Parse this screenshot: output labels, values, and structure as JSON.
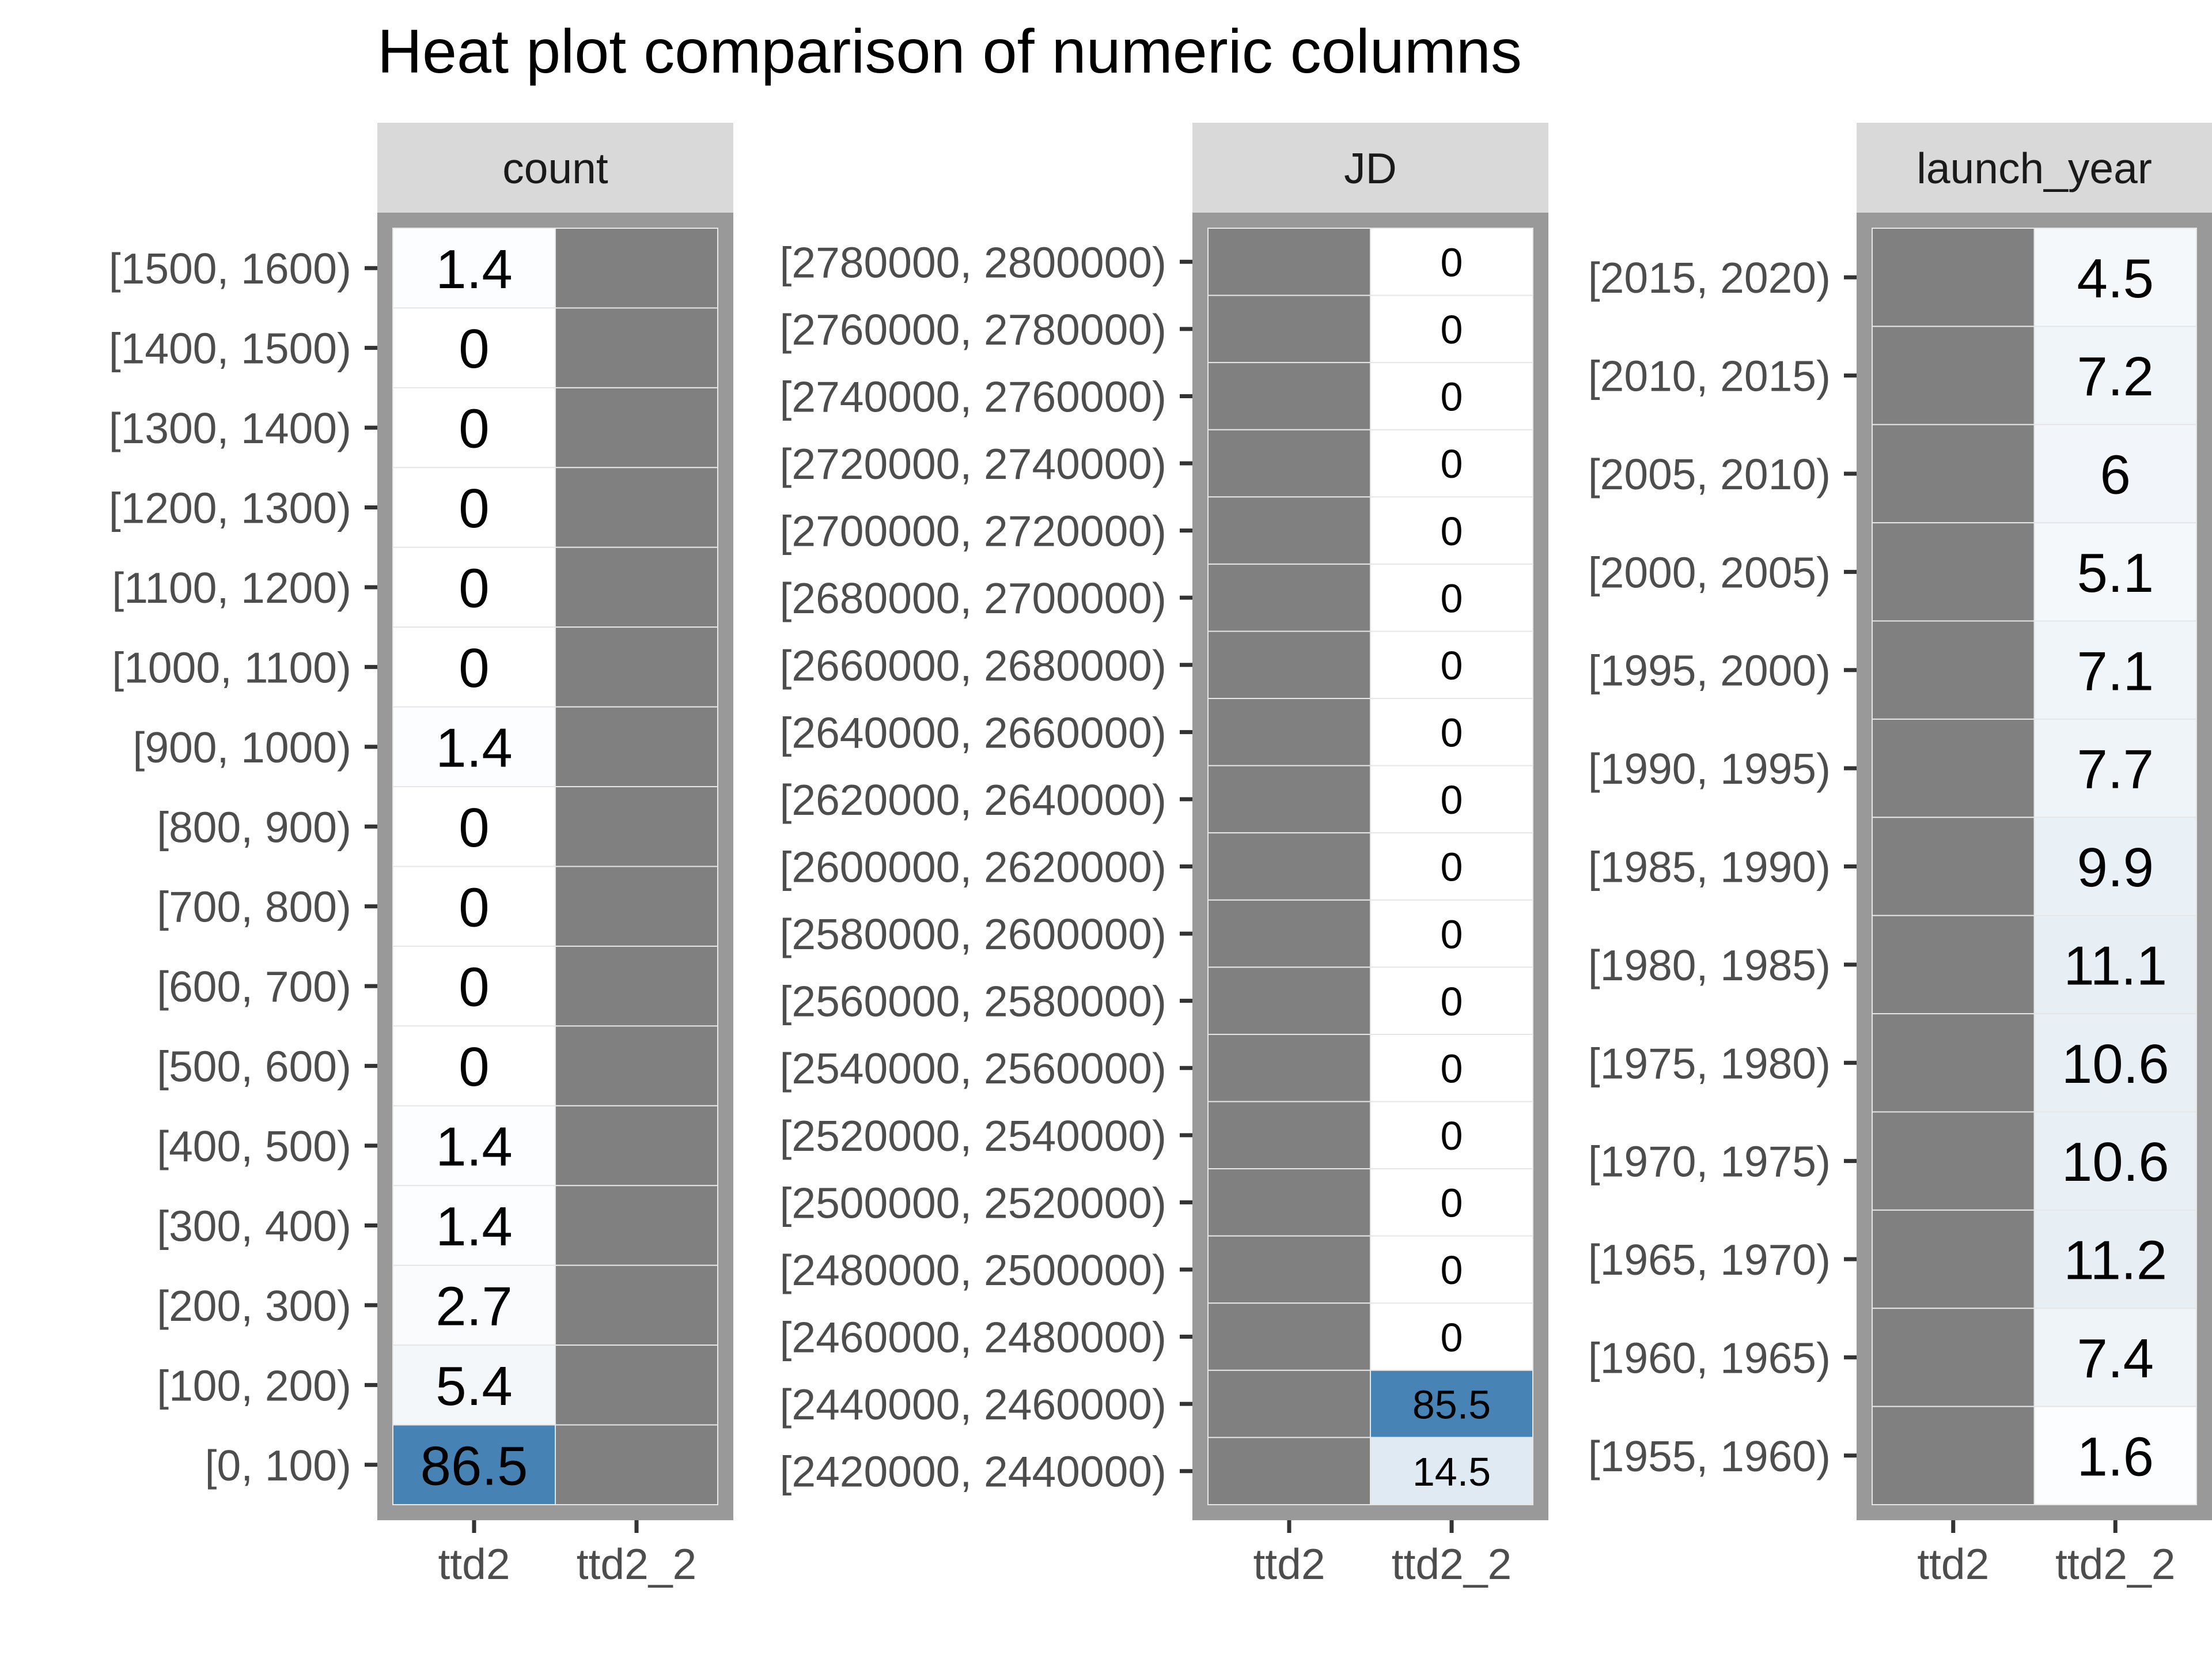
{
  "chart_data": {
    "type": "heatmap",
    "title": "Heat plot comparison of numeric columns",
    "colors": {
      "na": "#808080",
      "low": "#ffffff",
      "high": "#4682b4",
      "panel_border": "#999999",
      "strip": "#d9d9d9",
      "tile_line": "#e6e6e6"
    },
    "panels": [
      {
        "name": "count",
        "columns": [
          "ttd2",
          "ttd2_2"
        ],
        "rows": [
          "[1500, 1600)",
          "[1400, 1500)",
          "[1300, 1400)",
          "[1200, 1300)",
          "[1100, 1200)",
          "[1000, 1100)",
          "[900, 1000)",
          "[800, 900)",
          "[700, 800)",
          "[600, 700)",
          "[500, 600)",
          "[400, 500)",
          "[300, 400)",
          "[200, 300)",
          "[100, 200)",
          "[0, 100)"
        ],
        "values": [
          [
            1.4,
            null
          ],
          [
            0,
            null
          ],
          [
            0,
            null
          ],
          [
            0,
            null
          ],
          [
            0,
            null
          ],
          [
            0,
            null
          ],
          [
            1.4,
            null
          ],
          [
            0,
            null
          ],
          [
            0,
            null
          ],
          [
            0,
            null
          ],
          [
            0,
            null
          ],
          [
            1.4,
            null
          ],
          [
            1.4,
            null
          ],
          [
            2.7,
            null
          ],
          [
            5.4,
            null
          ],
          [
            86.5,
            null
          ]
        ],
        "labels": [
          [
            "1.4",
            ""
          ],
          [
            "0",
            ""
          ],
          [
            "0",
            ""
          ],
          [
            "0",
            ""
          ],
          [
            "0",
            ""
          ],
          [
            "0",
            ""
          ],
          [
            "1.4",
            ""
          ],
          [
            "0",
            ""
          ],
          [
            "0",
            ""
          ],
          [
            "0",
            ""
          ],
          [
            "0",
            ""
          ],
          [
            "1.4",
            ""
          ],
          [
            "1.4",
            ""
          ],
          [
            "2.7",
            ""
          ],
          [
            "5.4",
            ""
          ],
          [
            "86.5",
            ""
          ]
        ]
      },
      {
        "name": "JD",
        "columns": [
          "ttd2",
          "ttd2_2"
        ],
        "rows": [
          "[2780000, 2800000)",
          "[2760000, 2780000)",
          "[2740000, 2760000)",
          "[2720000, 2740000)",
          "[2700000, 2720000)",
          "[2680000, 2700000)",
          "[2660000, 2680000)",
          "[2640000, 2660000)",
          "[2620000, 2640000)",
          "[2600000, 2620000)",
          "[2580000, 2600000)",
          "[2560000, 2580000)",
          "[2540000, 2560000)",
          "[2520000, 2540000)",
          "[2500000, 2520000)",
          "[2480000, 2500000)",
          "[2460000, 2480000)",
          "[2440000, 2460000)",
          "[2420000, 2440000)"
        ],
        "values": [
          [
            null,
            0
          ],
          [
            null,
            0
          ],
          [
            null,
            0
          ],
          [
            null,
            0
          ],
          [
            null,
            0
          ],
          [
            null,
            0
          ],
          [
            null,
            0
          ],
          [
            null,
            0
          ],
          [
            null,
            0
          ],
          [
            null,
            0
          ],
          [
            null,
            0
          ],
          [
            null,
            0
          ],
          [
            null,
            0
          ],
          [
            null,
            0
          ],
          [
            null,
            0
          ],
          [
            null,
            0
          ],
          [
            null,
            0
          ],
          [
            null,
            85.5
          ],
          [
            null,
            14.5
          ]
        ],
        "labels": [
          [
            "",
            "0"
          ],
          [
            "",
            "0"
          ],
          [
            "",
            "0"
          ],
          [
            "",
            "0"
          ],
          [
            "",
            "0"
          ],
          [
            "",
            "0"
          ],
          [
            "",
            "0"
          ],
          [
            "",
            "0"
          ],
          [
            "",
            "0"
          ],
          [
            "",
            "0"
          ],
          [
            "",
            "0"
          ],
          [
            "",
            "0"
          ],
          [
            "",
            "0"
          ],
          [
            "",
            "0"
          ],
          [
            "",
            "0"
          ],
          [
            "",
            "0"
          ],
          [
            "",
            "0"
          ],
          [
            "",
            "85.5"
          ],
          [
            "",
            "14.5"
          ]
        ]
      },
      {
        "name": "launch_year",
        "columns": [
          "ttd2",
          "ttd2_2"
        ],
        "rows": [
          "[2015, 2020)",
          "[2010, 2015)",
          "[2005, 2010)",
          "[2000, 2005)",
          "[1995, 2000)",
          "[1990, 1995)",
          "[1985, 1990)",
          "[1980, 1985)",
          "[1975, 1980)",
          "[1970, 1975)",
          "[1965, 1970)",
          "[1960, 1965)",
          "[1955, 1960)"
        ],
        "values": [
          [
            null,
            4.5
          ],
          [
            null,
            7.2
          ],
          [
            null,
            6
          ],
          [
            null,
            5.1
          ],
          [
            null,
            7.1
          ],
          [
            null,
            7.7
          ],
          [
            null,
            9.9
          ],
          [
            null,
            11.1
          ],
          [
            null,
            10.6
          ],
          [
            null,
            10.6
          ],
          [
            null,
            11.2
          ],
          [
            null,
            7.4
          ],
          [
            null,
            1.6
          ]
        ],
        "labels": [
          [
            "",
            "4.5"
          ],
          [
            "",
            "7.2"
          ],
          [
            "",
            "6"
          ],
          [
            "",
            "5.1"
          ],
          [
            "",
            "7.1"
          ],
          [
            "",
            "7.7"
          ],
          [
            "",
            "9.9"
          ],
          [
            "",
            "11.1"
          ],
          [
            "",
            "10.6"
          ],
          [
            "",
            "10.6"
          ],
          [
            "",
            "11.2"
          ],
          [
            "",
            "7.4"
          ],
          [
            "",
            "1.6"
          ]
        ]
      }
    ]
  }
}
